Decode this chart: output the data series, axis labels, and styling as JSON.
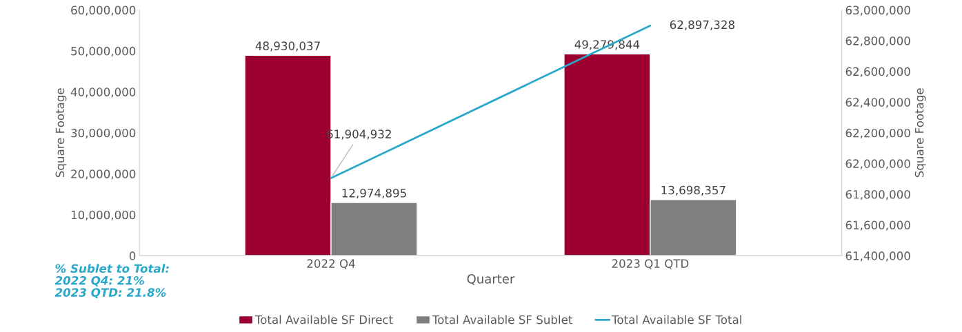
{
  "chart_data": {
    "type": "bar",
    "categories": [
      "2022 Q4",
      "2023 Q1 QTD"
    ],
    "series": [
      {
        "name": "Total Available SF Direct",
        "color": "#9b0030",
        "values": [
          48930037,
          49279844
        ],
        "value_labels": [
          "48,930,037",
          "49,279,844"
        ]
      },
      {
        "name": "Total Available SF Sublet",
        "color": "#7f7f7f",
        "values": [
          12974895,
          13698357
        ],
        "value_labels": [
          "12,974,895",
          "13,698,357"
        ]
      },
      {
        "name": "Total Available SF Total",
        "color": "#2aa7c9",
        "type": "line",
        "axis": "y2",
        "values": [
          61904932,
          62897328
        ],
        "value_labels": [
          "61,904,932",
          "62,897,328"
        ]
      }
    ],
    "xlabel": "Quarter",
    "ylabel": "Square Footage",
    "y2label": "Square Footage",
    "ylim": [
      0,
      60000000
    ],
    "yticks": [
      0,
      {
        "value": 10000000,
        "label": "10,000,000"
      },
      {
        "value": 20000000,
        "label": "20,000,000"
      },
      {
        "value": 30000000,
        "label": "30,000,000"
      },
      {
        "value": 40000000,
        "label": "40,000,000"
      },
      {
        "value": 50000000,
        "label": "50,000,000"
      },
      {
        "value": 60000000,
        "label": "60,000,000"
      }
    ],
    "y2lim": [
      61400000,
      63000000
    ],
    "y2ticks": [
      {
        "value": 61400000,
        "label": "61,400,000"
      },
      {
        "value": 61600000,
        "label": "61,600,000"
      },
      {
        "value": 61800000,
        "label": "61,800,000"
      },
      {
        "value": 62000000,
        "label": "62,000,000"
      },
      {
        "value": 62200000,
        "label": "62,200,000"
      },
      {
        "value": 62400000,
        "label": "62,400,000"
      },
      {
        "value": 62600000,
        "label": "62,600,000"
      },
      {
        "value": 62800000,
        "label": "62,800,000"
      },
      {
        "value": 63000000,
        "label": "63,000,000"
      }
    ],
    "legend": "bottom",
    "grid": false,
    "annotations": [
      "% Sublet to Total:\n2022 Q4: 21%\n2023 QTD: 21.8%"
    ]
  }
}
